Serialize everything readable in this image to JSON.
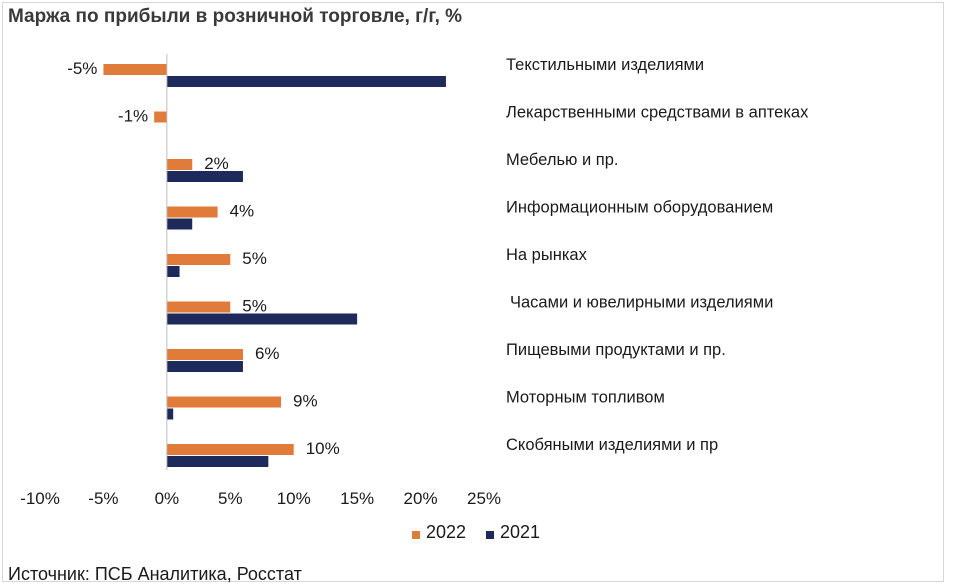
{
  "title": "Маржа по прибыли в розничной торговле, г/г, %",
  "source": "Источник:  ПСБ Аналитика, Росстат",
  "colors": {
    "series_2022": "#e07b39",
    "series_2021": "#1f2a5c"
  },
  "chart_data": {
    "type": "bar",
    "orientation": "horizontal",
    "categories": [
      "Текстильными изделиями",
      "Лекарственными средствами в аптеках",
      "Мебелью и пр.",
      "Информационным оборудованием",
      "На рынках",
      "Часами и ювелирными изделиями",
      "Пищевыми продуктами и пр.",
      "Моторным топливом",
      "Скобяными изделиями и пр"
    ],
    "series": [
      {
        "name": "2022",
        "values": [
          -5,
          -1,
          2,
          4,
          5,
          5,
          6,
          9,
          10
        ],
        "labels": [
          "-5%",
          "-1%",
          "2%",
          "4%",
          "5%",
          "5%",
          "6%",
          "9%",
          "10%"
        ]
      },
      {
        "name": "2021",
        "values": [
          22,
          0,
          6,
          2,
          1,
          15,
          6,
          0.5,
          8
        ]
      }
    ],
    "xlim": [
      -10,
      25
    ],
    "xticks": [
      "-10%",
      "-5%",
      "0%",
      "5%",
      "10%",
      "15%",
      "20%",
      "25%"
    ],
    "legend": "bottom"
  }
}
